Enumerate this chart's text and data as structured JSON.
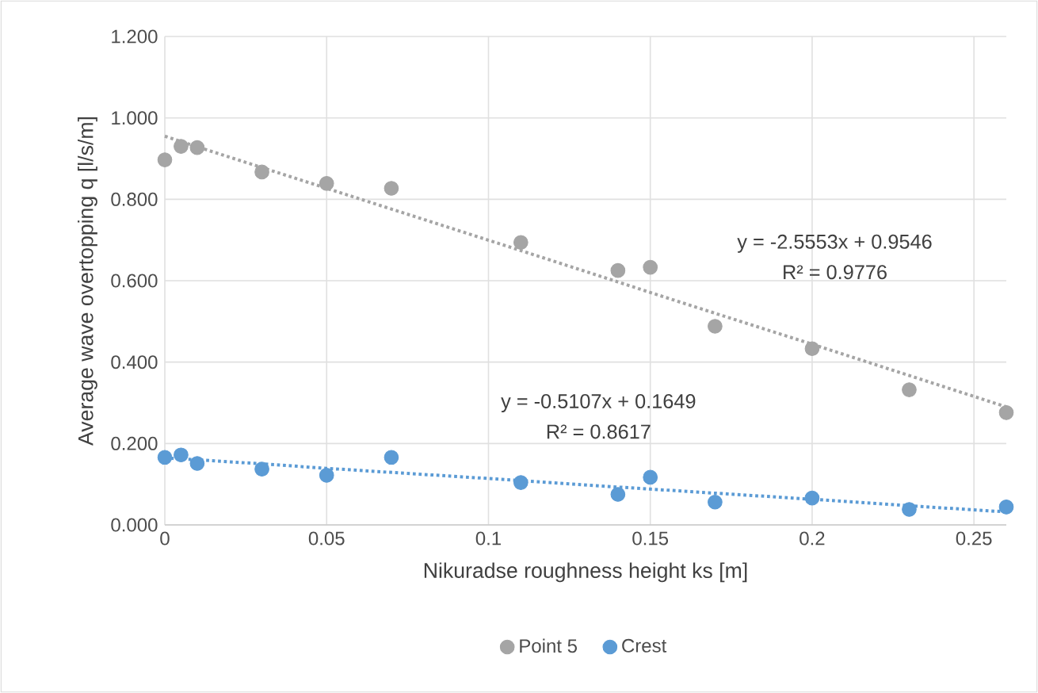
{
  "chart_data": {
    "type": "scatter",
    "xlabel": "Nikuradse roughness height ks [m]",
    "ylabel": "Average wave overtopping q [l/s/m]",
    "xlim": [
      0,
      0.26
    ],
    "xticks": [
      0,
      0.05,
      0.1,
      0.15,
      0.2,
      0.25
    ],
    "ylim": [
      0,
      1.2
    ],
    "yticks": [
      {
        "value": 0,
        "label": "0.000"
      },
      {
        "value": 0.2,
        "label": "0.200"
      },
      {
        "value": 0.4,
        "label": "0.400"
      },
      {
        "value": 0.6,
        "label": "0.600"
      },
      {
        "value": 0.8,
        "label": "0.800"
      },
      {
        "value": 1.0,
        "label": "1.000"
      },
      {
        "value": 1.2,
        "label": "1.200"
      }
    ],
    "grid": true,
    "legend": "bottom",
    "marker": "circle",
    "x": [
      0,
      0.005,
      0.01,
      0.03,
      0.05,
      0.07,
      0.11,
      0.14,
      0.15,
      0.17,
      0.2,
      0.23,
      0.26
    ],
    "series": [
      {
        "name": "Point 5",
        "color": "#a5a5a5",
        "values": [
          0.897,
          0.93,
          0.927,
          0.867,
          0.839,
          0.827,
          0.694,
          0.625,
          0.633,
          0.488,
          0.433,
          0.332,
          0.276
        ]
      },
      {
        "name": "Crest",
        "color": "#5b9bd5",
        "values": [
          0.166,
          0.172,
          0.151,
          0.137,
          0.122,
          0.166,
          0.104,
          0.075,
          0.117,
          0.056,
          0.066,
          0.038,
          0.044
        ]
      },
      {
        "type": "line",
        "color": "#a5a5a5",
        "marker": "none",
        "line_style": "dotted",
        "values": [
          0.955,
          0.942,
          0.929,
          0.878,
          0.827,
          0.776,
          0.674,
          0.597,
          0.571,
          0.52,
          0.444,
          0.367,
          0.29
        ]
      },
      {
        "type": "line",
        "color": "#5b9bd5",
        "marker": "none",
        "line_style": "dotted",
        "values": [
          0.165,
          0.162,
          0.16,
          0.15,
          0.139,
          0.129,
          0.109,
          0.093,
          0.088,
          0.078,
          0.063,
          0.047,
          0.032
        ]
      }
    ],
    "annotations": [
      "y = -2.5553x + 0.9546",
      "R² = 0.9776",
      "y = -0.5107x + 0.1649",
      "R² = 0.8617"
    ]
  }
}
